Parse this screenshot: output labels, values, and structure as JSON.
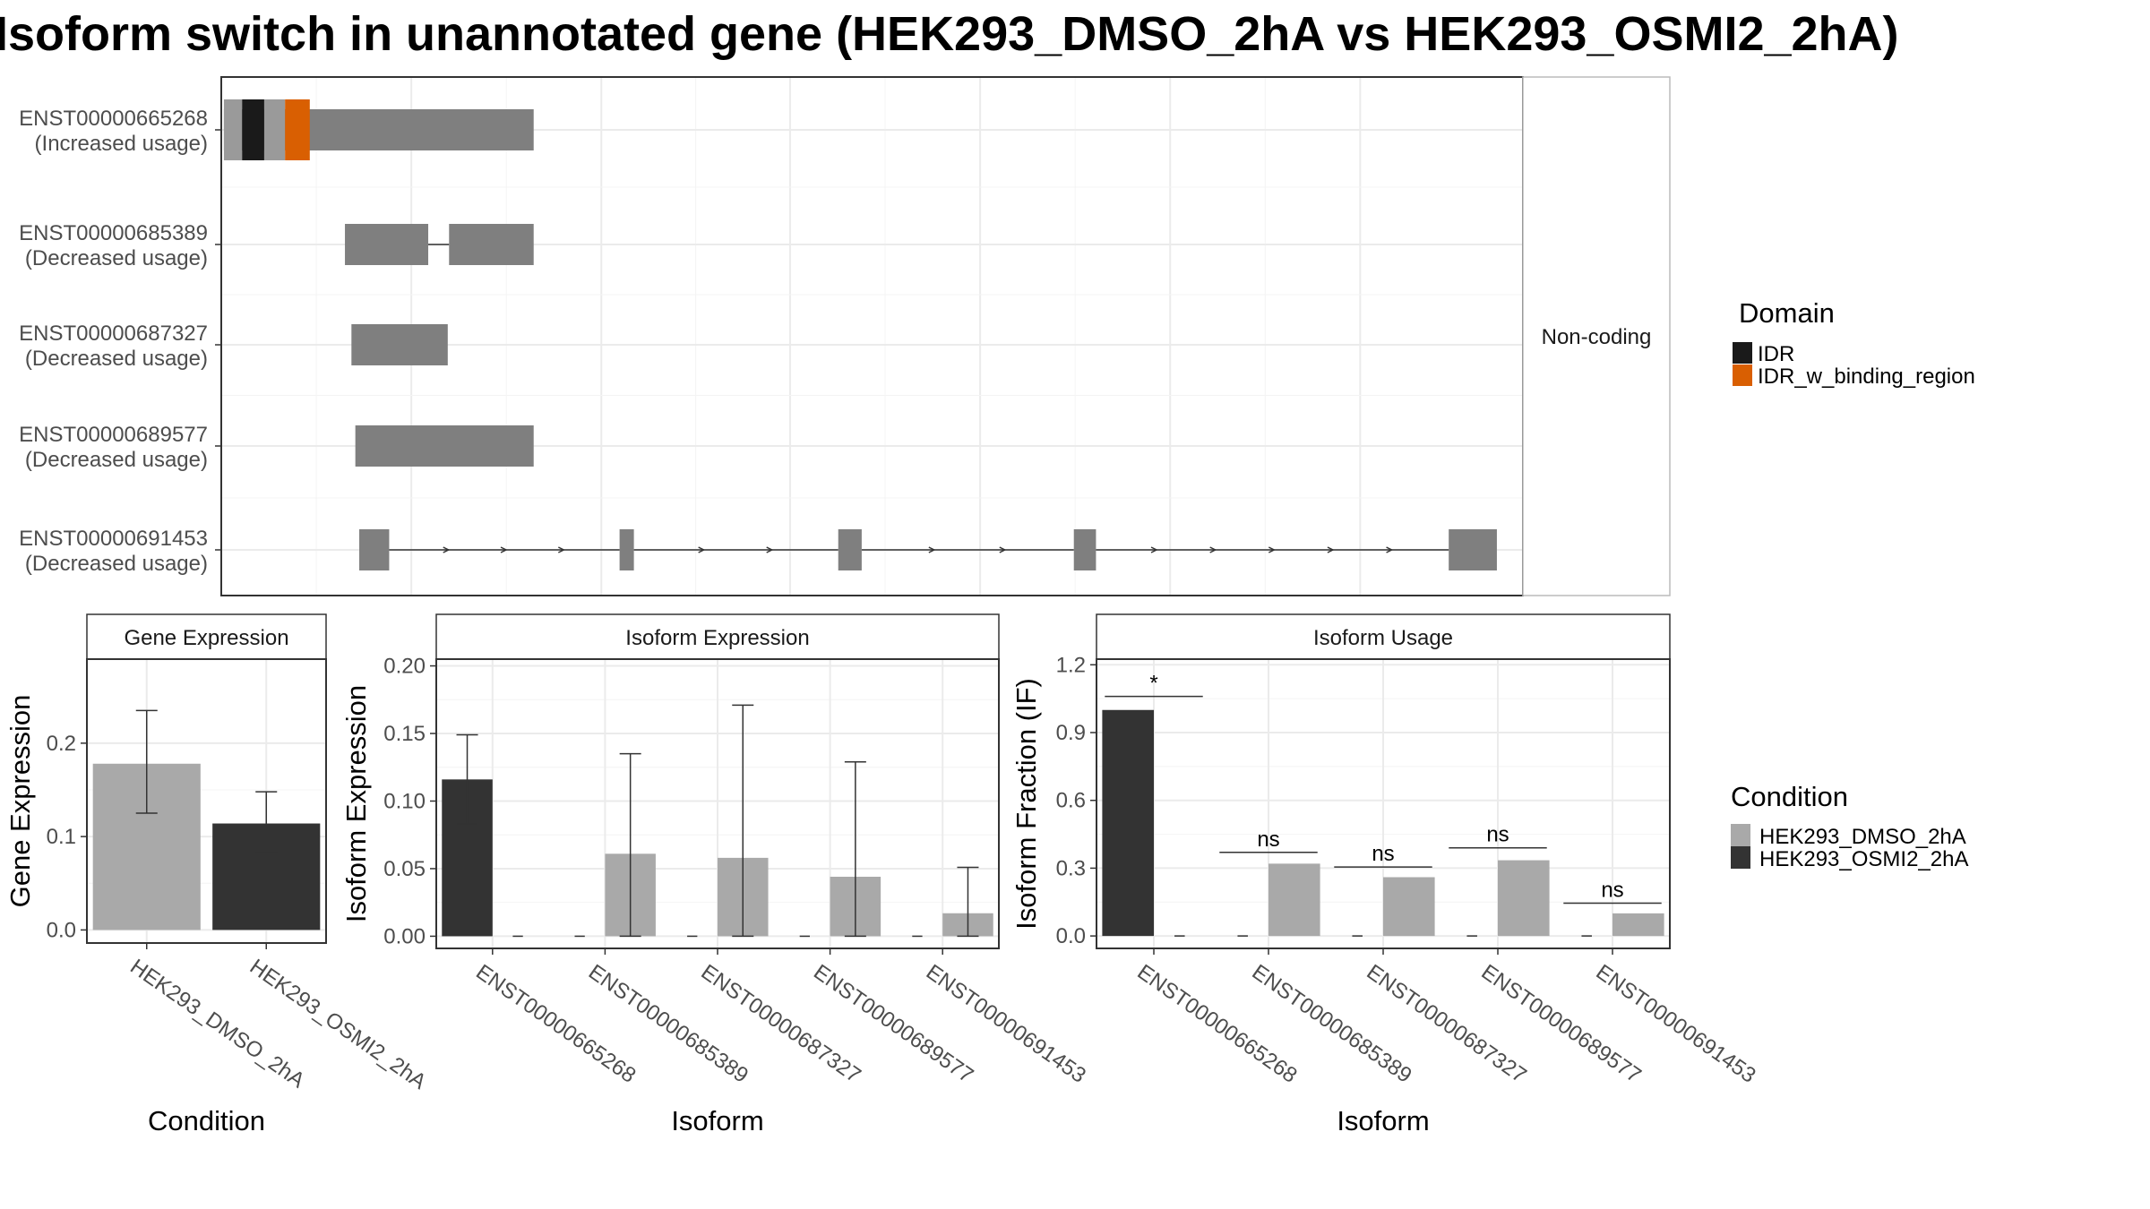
{
  "title": "Isoform switch in unannotated gene (HEK293_DMSO_2hA vs HEK293_OSMI2_2hA)",
  "colors": {
    "exon": "#7f7f7f",
    "IDR": "#1a1a1a",
    "IDR_w_binding_region": "#d95f02",
    "HEK293_DMSO_2hA": "#a9a9a9",
    "HEK293_OSMI2_2hA": "#333333",
    "grid": "#ebebeb",
    "strip_bg": "#ffffff"
  },
  "chart_data": [
    {
      "type": "gene-structure",
      "facet_label": "Non-coding",
      "legend": {
        "title": "Domain",
        "entries": [
          "IDR",
          "IDR_w_binding_region"
        ]
      },
      "x_range": [
        0,
        1000
      ],
      "x_breaks": [
        0,
        146,
        292,
        437,
        583,
        729,
        875
      ],
      "transcripts": [
        {
          "id": "ENST00000665268",
          "usage": "(Increased usage)",
          "exons": [
            [
              2,
              240
            ]
          ],
          "domains": [
            {
              "name": "exon-light",
              "range": [
                2,
                16
              ]
            },
            {
              "name": "IDR",
              "range": [
                16,
                33
              ]
            },
            {
              "name": "exon-light",
              "range": [
                33,
                49
              ]
            },
            {
              "name": "IDR_w_binding_region",
              "range": [
                49,
                68
              ]
            }
          ]
        },
        {
          "id": "ENST00000685389",
          "usage": "(Decreased usage)",
          "exons": [
            [
              95,
              159
            ],
            [
              175,
              240
            ]
          ]
        },
        {
          "id": "ENST00000687327",
          "usage": "(Decreased usage)",
          "exons": [
            [
              100,
              174
            ]
          ]
        },
        {
          "id": "ENST00000689577",
          "usage": "(Decreased usage)",
          "exons": [
            [
              103,
              240
            ]
          ]
        },
        {
          "id": "ENST00000691453",
          "usage": "(Decreased usage)",
          "exons": [
            [
              106,
              129
            ],
            [
              306,
              317
            ],
            [
              474,
              492
            ],
            [
              655,
              672
            ],
            [
              943,
              980
            ]
          ]
        }
      ]
    },
    {
      "type": "bar",
      "facet_label": "Gene Expression",
      "xlabel": "Condition",
      "ylabel": "Gene Expression",
      "categories": [
        "HEK293_DMSO_2hA",
        "HEK293_OSMI2_2hA"
      ],
      "values": [
        0.178,
        0.114
      ],
      "error": [
        [
          0.125,
          0.235
        ],
        [
          0.083,
          0.148
        ]
      ],
      "ylim": [
        -0.014,
        0.29
      ],
      "yticks": [
        0.0,
        0.1,
        0.2
      ],
      "ytick_labels": [
        "0.0",
        "0.1",
        "0.2"
      ]
    },
    {
      "type": "bar",
      "facet_label": "Isoform Expression",
      "xlabel": "Isoform",
      "ylabel": "Isoform Expression",
      "categories": [
        "ENST00000665268",
        "ENST00000685389",
        "ENST00000687327",
        "ENST00000689577",
        "ENST00000691453"
      ],
      "series": [
        {
          "name": "HEK293_DMSO_2hA",
          "values": [
            0.0,
            0.061,
            0.058,
            0.044,
            0.017
          ],
          "error": [
            [
              0.0,
              0.0
            ],
            [
              0.0,
              0.135
            ],
            [
              0.0,
              0.171
            ],
            [
              0.0,
              0.129
            ],
            [
              0.0,
              0.051
            ]
          ]
        },
        {
          "name": "HEK293_OSMI2_2hA",
          "values": [
            0.116,
            0.0,
            0.0,
            0.0,
            0.0
          ],
          "error": [
            [
              0.083,
              0.149
            ],
            [
              0.0,
              0.0
            ],
            [
              0.0,
              0.0
            ],
            [
              0.0,
              0.0
            ],
            [
              0.0,
              0.0
            ]
          ]
        }
      ],
      "ylim": [
        -0.009,
        0.205
      ],
      "yticks": [
        0.0,
        0.05,
        0.1,
        0.15,
        0.2
      ],
      "ytick_labels": [
        "0.00",
        "0.05",
        "0.10",
        "0.15",
        "0.20"
      ]
    },
    {
      "type": "bar",
      "facet_label": "Isoform Usage",
      "xlabel": "Isoform",
      "ylabel": "Isoform Fraction (IF)",
      "categories": [
        "ENST00000665268",
        "ENST00000685389",
        "ENST00000687327",
        "ENST00000689577",
        "ENST00000691453"
      ],
      "series": [
        {
          "name": "HEK293_DMSO_2hA",
          "values": [
            0.0,
            0.32,
            0.26,
            0.335,
            0.1
          ]
        },
        {
          "name": "HEK293_OSMI2_2hA",
          "values": [
            1.0,
            0.0,
            0.0,
            0.0,
            0.0
          ]
        }
      ],
      "significance": [
        "*",
        "ns",
        "ns",
        "ns",
        "ns"
      ],
      "sig_y": [
        1.06,
        0.37,
        0.305,
        0.39,
        0.145
      ],
      "ylim": [
        -0.055,
        1.225
      ],
      "yticks": [
        0.0,
        0.3,
        0.6,
        0.9,
        1.2
      ],
      "ytick_labels": [
        "0.0",
        "0.3",
        "0.6",
        "0.9",
        "1.2"
      ]
    },
    {
      "type": "legend",
      "title": "Condition",
      "entries": [
        "HEK293_DMSO_2hA",
        "HEK293_OSMI2_2hA"
      ]
    }
  ]
}
